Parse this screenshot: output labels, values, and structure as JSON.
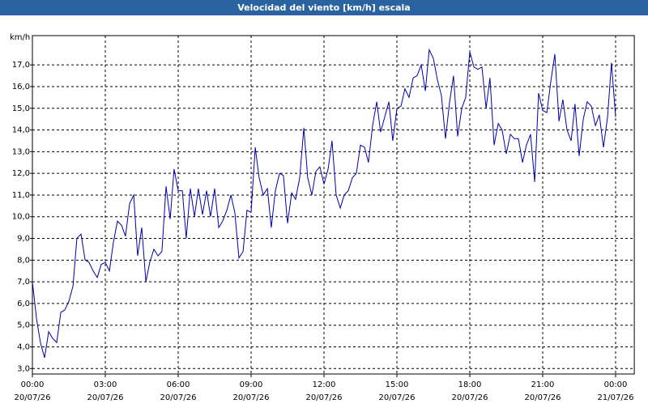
{
  "chart_data": {
    "type": "line",
    "title": "Velocidad del viento [km/h] escala",
    "y_unit": "km/h",
    "grid": true,
    "xlim": [
      0,
      24.77
    ],
    "ylim": [
      2.75,
      18.35
    ],
    "xticks": [
      {
        "value": 0,
        "label": "00:00",
        "date": "20/07/26"
      },
      {
        "value": 3,
        "label": "03:00",
        "date": "20/07/26"
      },
      {
        "value": 6,
        "label": "06:00",
        "date": "20/07/26"
      },
      {
        "value": 9,
        "label": "09:00",
        "date": "20/07/26"
      },
      {
        "value": 12,
        "label": "12:00",
        "date": "20/07/26"
      },
      {
        "value": 15,
        "label": "15:00",
        "date": "20/07/26"
      },
      {
        "value": 18,
        "label": "18:00",
        "date": "20/07/26"
      },
      {
        "value": 21,
        "label": "21:00",
        "date": "20/07/26"
      },
      {
        "value": 24,
        "label": "00:00",
        "date": "21/07/26"
      }
    ],
    "yticks": [
      {
        "value": 3,
        "label": "3,0"
      },
      {
        "value": 4,
        "label": "4,0"
      },
      {
        "value": 5,
        "label": "5,0"
      },
      {
        "value": 6,
        "label": "6,0"
      },
      {
        "value": 7,
        "label": "7,0"
      },
      {
        "value": 8,
        "label": "8,0"
      },
      {
        "value": 9,
        "label": "9,0"
      },
      {
        "value": 10,
        "label": "10,0"
      },
      {
        "value": 11,
        "label": "11,0"
      },
      {
        "value": 12,
        "label": "12,0"
      },
      {
        "value": 13,
        "label": "13,0"
      },
      {
        "value": 14,
        "label": "14,0"
      },
      {
        "value": 15,
        "label": "15,0"
      },
      {
        "value": 16,
        "label": "16,0"
      },
      {
        "value": 17,
        "label": "17,0"
      }
    ],
    "x": [
      0,
      0.17,
      0.33,
      0.5,
      0.67,
      0.83,
      1,
      1.17,
      1.33,
      1.5,
      1.67,
      1.83,
      2,
      2.17,
      2.33,
      2.5,
      2.67,
      2.83,
      3,
      3.17,
      3.33,
      3.5,
      3.67,
      3.83,
      4,
      4.17,
      4.33,
      4.5,
      4.67,
      4.83,
      5,
      5.17,
      5.33,
      5.5,
      5.67,
      5.83,
      6,
      6.17,
      6.33,
      6.5,
      6.67,
      6.83,
      7,
      7.17,
      7.33,
      7.5,
      7.67,
      7.83,
      8,
      8.17,
      8.33,
      8.5,
      8.67,
      8.83,
      9,
      9.17,
      9.33,
      9.5,
      9.67,
      9.83,
      10,
      10.17,
      10.33,
      10.5,
      10.67,
      10.83,
      11,
      11.17,
      11.33,
      11.5,
      11.67,
      11.83,
      12,
      12.17,
      12.33,
      12.5,
      12.67,
      12.83,
      13,
      13.17,
      13.33,
      13.5,
      13.67,
      13.83,
      14,
      14.17,
      14.33,
      14.5,
      14.67,
      14.83,
      15,
      15.17,
      15.33,
      15.5,
      15.67,
      15.83,
      16,
      16.17,
      16.33,
      16.5,
      16.67,
      16.83,
      17,
      17.17,
      17.33,
      17.5,
      17.67,
      17.83,
      18,
      18.17,
      18.33,
      18.5,
      18.67,
      18.83,
      19,
      19.17,
      19.33,
      19.5,
      19.67,
      19.83,
      20,
      20.17,
      20.33,
      20.5,
      20.67,
      20.83,
      21,
      21.17,
      21.33,
      21.5,
      21.67,
      21.83,
      22,
      22.17,
      22.33,
      22.5,
      22.67,
      22.83,
      23,
      23.17,
      23.33,
      23.5,
      23.67,
      23.83,
      24
    ],
    "series": [
      {
        "color": "#0000a8",
        "values": [
          7.0,
          5.3,
          4.2,
          3.5,
          4.7,
          4.4,
          4.2,
          5.6,
          5.7,
          6.1,
          6.8,
          9.0,
          9.2,
          8.0,
          7.9,
          7.5,
          7.2,
          7.8,
          7.9,
          7.5,
          8.8,
          9.8,
          9.6,
          9.1,
          10.6,
          11.0,
          8.2,
          9.5,
          7.0,
          7.9,
          8.5,
          8.2,
          8.4,
          11.4,
          9.9,
          12.2,
          11.2,
          11.2,
          9.0,
          11.3,
          10.0,
          11.3,
          10.1,
          11.2,
          10.0,
          11.3,
          9.5,
          9.8,
          10.3,
          11.0,
          10.2,
          8.1,
          8.4,
          10.3,
          10.2,
          13.2,
          11.8,
          11.0,
          11.3,
          9.5,
          11.2,
          12.0,
          11.9,
          9.7,
          11.1,
          10.8,
          11.8,
          14.1,
          11.8,
          11.0,
          12.1,
          12.3,
          11.5,
          12.2,
          13.5,
          11.0,
          10.4,
          11.0,
          11.2,
          11.8,
          12.0,
          13.3,
          13.2,
          12.5,
          14.2,
          15.3,
          13.9,
          14.6,
          15.3,
          13.5,
          15.0,
          15.1,
          15.9,
          15.5,
          16.4,
          16.5,
          17.0,
          15.8,
          17.7,
          17.3,
          16.3,
          15.6,
          13.6,
          15.3,
          16.5,
          13.7,
          15.0,
          15.5,
          17.6,
          16.9,
          16.8,
          16.9,
          15.0,
          16.4,
          13.3,
          14.3,
          14.0,
          12.9,
          13.8,
          13.6,
          13.6,
          12.5,
          13.3,
          13.8,
          11.6,
          15.7,
          14.9,
          14.8,
          16.2,
          17.5,
          14.4,
          15.4,
          14.0,
          13.5,
          15.2,
          12.8,
          14.5,
          15.3,
          15.1,
          14.2,
          14.7,
          13.2,
          14.6,
          17.1,
          14.6
        ]
      }
    ]
  }
}
